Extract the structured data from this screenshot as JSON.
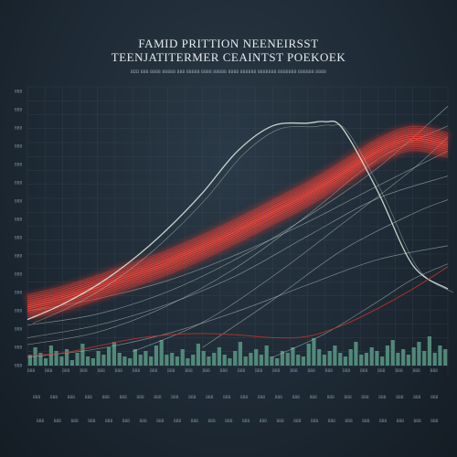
{
  "header": {
    "title_line1": "FAMID PRITTION NEENEIRSST",
    "title_line2": "TEENJATITERMER CEAINTST POEKOEK",
    "subtitle": "BDD BBB BBBB BBBBB BBB BBBBB BBBB BBBBB BBBB BBBBBB BBBBBBB BBBBBBB BBBBBB BBBB"
  },
  "chart_data": {
    "type": "line",
    "title": "FAMID PRITTION NEENEIRSST",
    "subtitle": "TEENJATITERMER CEAINTST POEKOEK",
    "grid": true,
    "xlim": [
      0,
      24
    ],
    "ylim": [
      0,
      20
    ],
    "y_ticks": [
      "BBB",
      "BBB",
      "BBB",
      "BBB",
      "BBB",
      "BBB",
      "BBB",
      "BBB",
      "BBB",
      "BBB",
      "BBB",
      "BBB",
      "BBB",
      "BBB",
      "BBB",
      "BBB"
    ],
    "x_ticks_row1": [
      "BBB",
      "BBB",
      "BBB",
      "BBB",
      "BBB",
      "BBB",
      "BBB",
      "BBB",
      "BBB",
      "BBB",
      "BBB",
      "BBB",
      "BBB",
      "BBB",
      "BBB",
      "BBB",
      "BBB",
      "BBB",
      "BBB",
      "BBB",
      "BBB",
      "BBB",
      "BBB",
      "BBB"
    ],
    "x_ticks_row2": [
      "BBB",
      "BBB",
      "BBB",
      "BBB",
      "BBB",
      "BBB",
      "BBB",
      "BBB",
      "BBB",
      "BBB",
      "BBB",
      "BBB",
      "BBB",
      "BBB",
      "BBB",
      "BBB",
      "BBB",
      "BBB",
      "BBB",
      "BBB",
      "BBB",
      "BBB",
      "BBB",
      "BBB"
    ],
    "x_ticks_row3": [
      "BBB",
      "BBB",
      "BBB",
      "BBB",
      "BBB",
      "BBB",
      "BBB",
      "BBB",
      "BBB",
      "BBB",
      "BBB",
      "BBB",
      "BBB",
      "BBB",
      "BBB",
      "BBB",
      "BBB",
      "BBB",
      "BBB",
      "BBB",
      "BBB",
      "BBB",
      "BBB",
      "BBB"
    ],
    "colors": {
      "band": "#ff4a3d",
      "band_glow": "#e0372e",
      "thin_line": "#b9c9c2",
      "peak_line": "#d8e6dc",
      "bars": "#5a9a86",
      "grid": "#3c4d5a",
      "lower_line": "#c0322c"
    },
    "band_series": {
      "name": "",
      "x": [
        0,
        2,
        4,
        6,
        8,
        10,
        12,
        14,
        16,
        18,
        20,
        22,
        24
      ],
      "y": [
        4.2,
        4.8,
        5.6,
        6.5,
        7.4,
        8.5,
        9.7,
        11.0,
        12.3,
        13.8,
        15.4,
        16.3,
        15.8
      ]
    },
    "peak_series": {
      "name": "",
      "x": [
        0,
        2,
        4,
        6,
        8,
        10,
        12,
        14,
        16,
        17,
        18,
        20,
        22,
        24
      ],
      "y": [
        3.3,
        4.4,
        5.8,
        7.6,
        9.8,
        12.4,
        15.4,
        17.2,
        17.4,
        17.5,
        17.0,
        12.5,
        7.2,
        5.5
      ]
    },
    "thin_series": [
      {
        "name": "",
        "x": [
          0,
          4,
          8,
          12,
          16,
          20,
          24
        ],
        "y": [
          2.9,
          3.7,
          5.3,
          7.7,
          10.7,
          14.2,
          18.6
        ]
      },
      {
        "name": "",
        "x": [
          0,
          4,
          8,
          12,
          16,
          20,
          24
        ],
        "y": [
          1.5,
          2.4,
          4.3,
          7.1,
          10.8,
          14.8,
          17.2
        ]
      },
      {
        "name": "",
        "x": [
          0,
          4,
          8,
          12,
          16,
          20,
          24
        ],
        "y": [
          3.9,
          4.8,
          6.1,
          8.0,
          10.3,
          12.9,
          15.4
        ]
      },
      {
        "name": "",
        "x": [
          0,
          4,
          8,
          12,
          16,
          20,
          24
        ],
        "y": [
          2.0,
          2.9,
          4.4,
          6.5,
          9.3,
          12.0,
          13.6
        ]
      },
      {
        "name": "",
        "x": [
          6,
          10,
          14,
          18,
          22,
          24
        ],
        "y": [
          1.0,
          3.1,
          6.4,
          10.2,
          14.1,
          16.4
        ]
      },
      {
        "name": "",
        "x": [
          10,
          14,
          18,
          22,
          24
        ],
        "y": [
          1.3,
          4.7,
          8.3,
          10.9,
          11.9
        ]
      },
      {
        "name": "",
        "x": [
          0,
          4,
          8,
          12,
          16,
          20,
          24
        ],
        "y": [
          0.6,
          1.2,
          2.3,
          3.9,
          5.8,
          7.6,
          8.6
        ]
      },
      {
        "name": "",
        "x": [
          14,
          17,
          20,
          22,
          24
        ],
        "y": [
          0.6,
          2.3,
          4.6,
          6.2,
          7.3
        ]
      }
    ],
    "lower_series": {
      "name": "",
      "x": [
        0,
        2,
        4,
        6,
        8,
        10,
        12,
        14,
        16,
        18,
        20,
        22,
        24
      ],
      "y": [
        0.7,
        0.9,
        1.4,
        1.9,
        2.2,
        2.3,
        2.2,
        2.0,
        2.1,
        2.9,
        4.1,
        5.5,
        7.1
      ]
    },
    "bars": {
      "ylim": [
        0,
        40
      ],
      "values": [
        12,
        20,
        14,
        8,
        22,
        16,
        10,
        18,
        6,
        14,
        24,
        10,
        8,
        16,
        12,
        20,
        26,
        14,
        10,
        8,
        18,
        12,
        16,
        10,
        22,
        28,
        12,
        14,
        10,
        18,
        8,
        12,
        24,
        16,
        10,
        14,
        20,
        12,
        8,
        16,
        26,
        10,
        14,
        18,
        12,
        22,
        10,
        8,
        16,
        14,
        20,
        12,
        10,
        24,
        30,
        18,
        12,
        16,
        22,
        14,
        10,
        18,
        26,
        12,
        14,
        20,
        16,
        10,
        22,
        28,
        14,
        18,
        12,
        20,
        26,
        16,
        32,
        14,
        22,
        18
      ]
    }
  }
}
